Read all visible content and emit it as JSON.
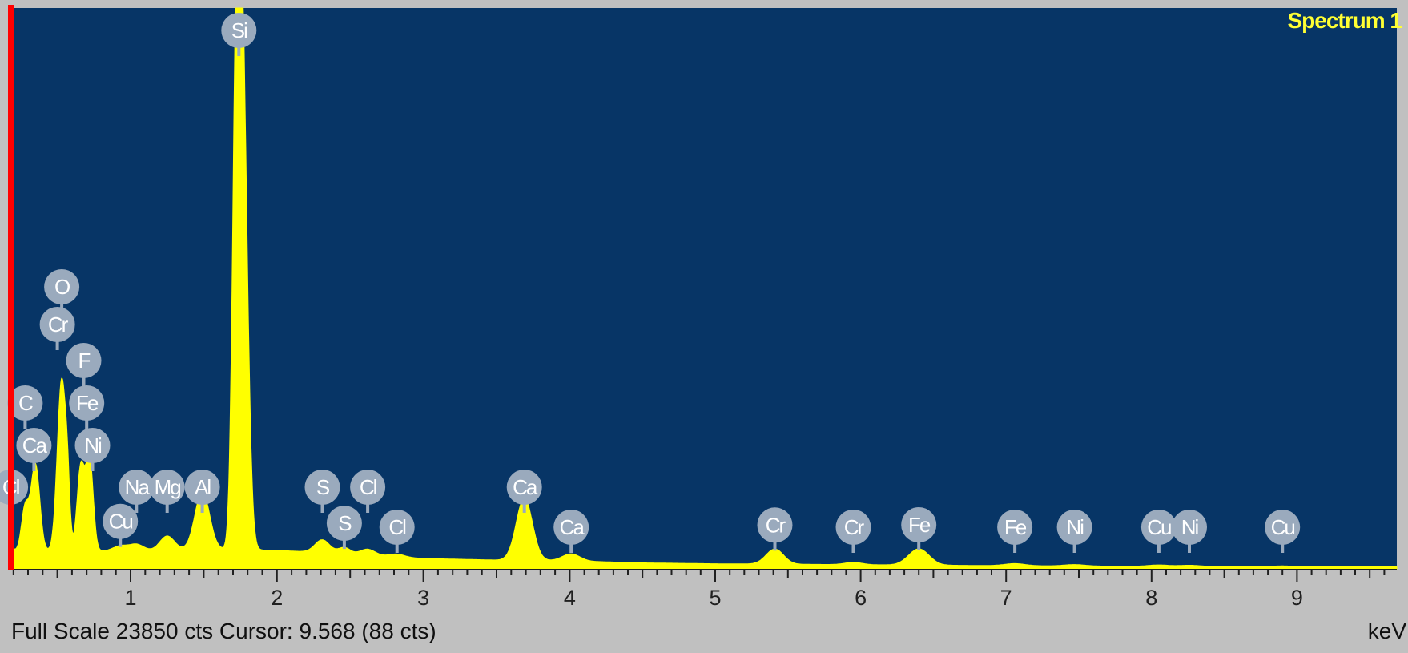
{
  "window": {
    "spectrum_label": "Spectrum 1",
    "status_line": "Full Scale 23850 cts Cursor: 9.568  (88 cts)",
    "unit": "keV"
  },
  "colors": {
    "plot_background": "#073566",
    "spectrum_fill": "#ffff00",
    "cursor": "#ff0000",
    "marker_fill": "#9aaabd",
    "panel": "#c0c0c0"
  },
  "chart_data": {
    "type": "area",
    "xlabel": "keV",
    "xlim": [
      0.1,
      9.7
    ],
    "ylim": [
      0,
      23850
    ],
    "x_ticks": [
      1,
      2,
      3,
      4,
      5,
      6,
      7,
      8,
      9
    ],
    "full_scale_cts": 23850,
    "cursor": {
      "x": 9.568,
      "cts": 88
    },
    "background": [
      [
        0.1,
        900
      ],
      [
        0.3,
        700
      ],
      [
        0.5,
        800
      ],
      [
        1.0,
        750
      ],
      [
        1.5,
        850
      ],
      [
        2.0,
        800
      ],
      [
        2.5,
        650
      ],
      [
        3.0,
        450
      ],
      [
        3.5,
        380
      ],
      [
        4.0,
        350
      ],
      [
        4.5,
        260
      ],
      [
        5.0,
        220
      ],
      [
        5.3,
        210
      ],
      [
        6.0,
        180
      ],
      [
        7.0,
        140
      ],
      [
        8.0,
        110
      ],
      [
        9.0,
        95
      ],
      [
        9.7,
        88
      ]
    ],
    "series": [
      {
        "name": "Spectrum 1",
        "peaks": [
          {
            "x": 0.14,
            "height": 1500,
            "width": 0.025
          },
          {
            "x": 0.28,
            "height": 1900,
            "width": 0.025
          },
          {
            "x": 0.35,
            "height": 3800,
            "width": 0.03
          },
          {
            "x": 0.53,
            "height": 7400,
            "width": 0.03
          },
          {
            "x": 0.57,
            "height": 1600,
            "width": 0.015
          },
          {
            "x": 0.66,
            "height": 3600,
            "width": 0.025
          },
          {
            "x": 0.72,
            "height": 4000,
            "width": 0.025
          },
          {
            "x": 0.93,
            "height": 230,
            "width": 0.05
          },
          {
            "x": 1.04,
            "height": 300,
            "width": 0.05
          },
          {
            "x": 1.25,
            "height": 620,
            "width": 0.05
          },
          {
            "x": 1.49,
            "height": 2500,
            "width": 0.05
          },
          {
            "x": 1.72,
            "height": 13500,
            "width": 0.025
          },
          {
            "x": 1.76,
            "height": 22900,
            "width": 0.035
          },
          {
            "x": 2.31,
            "height": 550,
            "width": 0.05
          },
          {
            "x": 2.46,
            "height": 260,
            "width": 0.04
          },
          {
            "x": 2.62,
            "height": 250,
            "width": 0.05
          },
          {
            "x": 2.82,
            "height": 120,
            "width": 0.05
          },
          {
            "x": 3.69,
            "height": 2700,
            "width": 0.055
          },
          {
            "x": 4.01,
            "height": 300,
            "width": 0.06
          },
          {
            "x": 5.41,
            "height": 650,
            "width": 0.06
          },
          {
            "x": 5.95,
            "height": 100,
            "width": 0.06
          },
          {
            "x": 6.4,
            "height": 700,
            "width": 0.07
          },
          {
            "x": 7.06,
            "height": 90,
            "width": 0.07
          },
          {
            "x": 7.47,
            "height": 60,
            "width": 0.07
          },
          {
            "x": 8.05,
            "height": 60,
            "width": 0.07
          },
          {
            "x": 8.26,
            "height": 50,
            "width": 0.07
          },
          {
            "x": 8.9,
            "height": 30,
            "width": 0.07
          }
        ]
      }
    ],
    "markers": [
      {
        "label": "C",
        "x": 0.28,
        "row": 3
      },
      {
        "label": "Ca",
        "x": 0.34,
        "row": 2
      },
      {
        "label": "Cl",
        "x": 0.18,
        "row": 1
      },
      {
        "label": "O",
        "x": 0.53,
        "row": 6
      },
      {
        "label": "Cr",
        "x": 0.5,
        "row": 5
      },
      {
        "label": "F",
        "x": 0.68,
        "row": 4
      },
      {
        "label": "Fe",
        "x": 0.7,
        "row": 3
      },
      {
        "label": "Ni",
        "x": 0.74,
        "row": 2
      },
      {
        "label": "Na",
        "x": 1.04,
        "row": 1
      },
      {
        "label": "Cu",
        "x": 0.93,
        "row": 0
      },
      {
        "label": "Mg",
        "x": 1.25,
        "row": 1
      },
      {
        "label": "Al",
        "x": 1.49,
        "row": 1
      },
      {
        "label": "Si",
        "x": 1.74,
        "row": 7
      },
      {
        "label": "S",
        "x": 2.31,
        "row": 1
      },
      {
        "label": "S",
        "x": 2.46,
        "row": 0
      },
      {
        "label": "Cl",
        "x": 2.62,
        "row": 1
      },
      {
        "label": "Cl",
        "x": 2.82,
        "row": 0
      },
      {
        "label": "Ca",
        "x": 3.69,
        "row": 1
      },
      {
        "label": "Ca",
        "x": 4.01,
        "row": 0
      },
      {
        "label": "Cr",
        "x": 5.41,
        "row": 0
      },
      {
        "label": "Cr",
        "x": 5.95,
        "row": 0
      },
      {
        "label": "Fe",
        "x": 6.4,
        "row": 0
      },
      {
        "label": "Fe",
        "x": 7.06,
        "row": 0
      },
      {
        "label": "Ni",
        "x": 7.47,
        "row": 0
      },
      {
        "label": "Cu",
        "x": 8.05,
        "row": 0
      },
      {
        "label": "Ni",
        "x": 8.26,
        "row": 0
      },
      {
        "label": "Cu",
        "x": 8.9,
        "row": 0
      }
    ]
  }
}
